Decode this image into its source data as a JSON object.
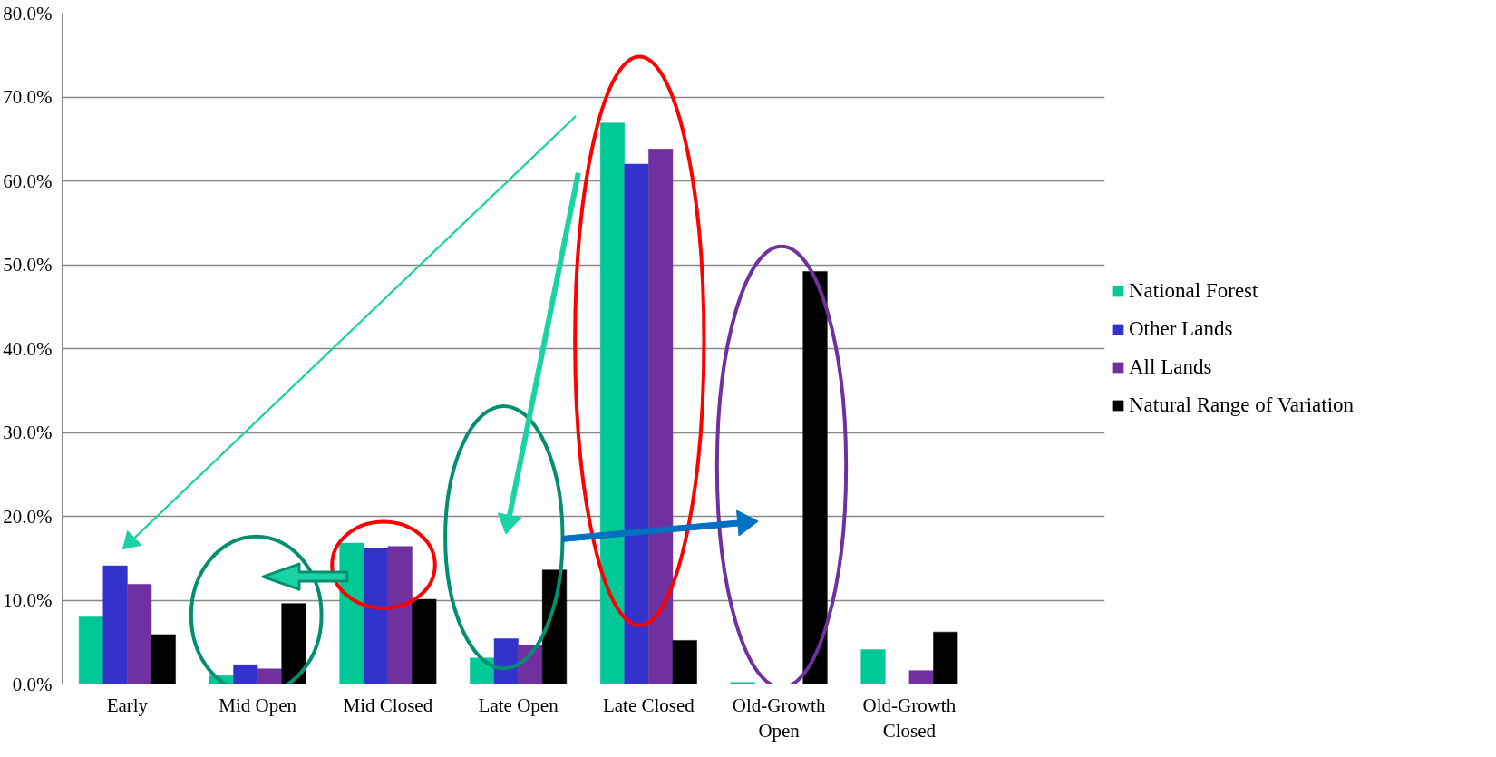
{
  "chart_data": {
    "type": "bar",
    "categories": [
      "Early",
      "Mid Open",
      "Mid Closed",
      "Late Open",
      "Late Closed",
      "Old-Growth Open",
      "Old-Growth Closed",
      null
    ],
    "series": [
      {
        "name": "National Forest",
        "color": "#00c896",
        "values": [
          8.0,
          1.0,
          16.8,
          3.1,
          66.9,
          0.2,
          4.1,
          null
        ]
      },
      {
        "name": "Other Lands",
        "color": "#3333cc",
        "values": [
          14.1,
          2.3,
          16.2,
          5.4,
          62.0,
          0.0,
          0.0,
          null
        ]
      },
      {
        "name": "All Lands",
        "color": "#7030a0",
        "values": [
          11.9,
          1.8,
          16.4,
          4.6,
          63.8,
          0.0,
          1.6,
          null
        ]
      },
      {
        "name": "Natural Range of Variation",
        "color": "#000000",
        "values": [
          5.9,
          9.6,
          10.1,
          13.6,
          5.2,
          49.2,
          6.2,
          null
        ]
      }
    ],
    "ylim": [
      0,
      80
    ],
    "yticks": [
      {
        "value": 0,
        "label": "0.0%"
      },
      {
        "value": 10,
        "label": "10.0%"
      },
      {
        "value": 20,
        "label": "20.0%"
      },
      {
        "value": 30,
        "label": "30.0%"
      },
      {
        "value": 40,
        "label": "40.0%"
      },
      {
        "value": 50,
        "label": "50.0%"
      },
      {
        "value": 60,
        "label": "60.0%"
      },
      {
        "value": 70,
        "label": "70.0%"
      },
      {
        "value": 80,
        "label": "80.0%"
      }
    ],
    "grid": "y",
    "legend": "right"
  }
}
